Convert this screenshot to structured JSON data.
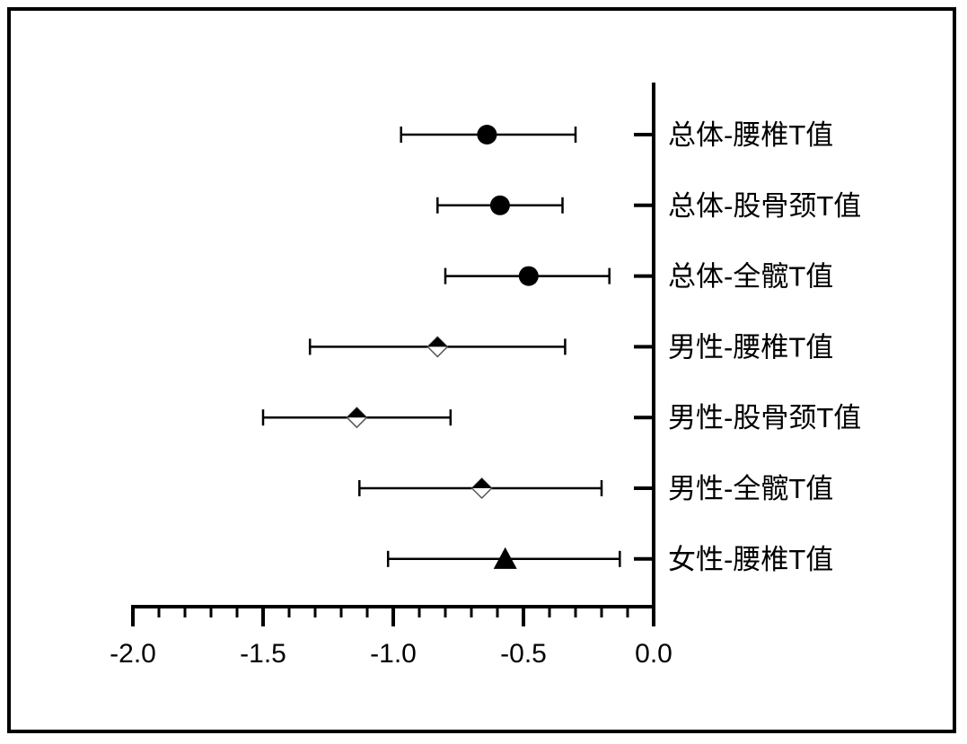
{
  "chart_data": {
    "type": "forest",
    "title": "",
    "xlabel": "",
    "ylabel": "",
    "xlim": [
      -2.0,
      0.0
    ],
    "x_ticks": [
      "-2.0",
      "-1.5",
      "-1.0",
      "-0.5",
      "0.0"
    ],
    "minor_tick_step": 0.1,
    "grid": false,
    "legend": "none",
    "colors": {
      "line": "#000000",
      "background": "#ffffff",
      "marker_fill": "#000000",
      "marker_open": "#ffffff"
    },
    "rows": [
      {
        "label": "总体-腰椎T值",
        "mean": -0.64,
        "lower": -0.97,
        "upper": -0.3,
        "marker": "circle"
      },
      {
        "label": "总体-股骨颈T值",
        "mean": -0.59,
        "lower": -0.83,
        "upper": -0.35,
        "marker": "circle"
      },
      {
        "label": "总体-全髋T值",
        "mean": -0.48,
        "lower": -0.8,
        "upper": -0.17,
        "marker": "circle"
      },
      {
        "label": "男性-腰椎T值",
        "mean": -0.83,
        "lower": -1.32,
        "upper": -0.34,
        "marker": "diamond-half"
      },
      {
        "label": "男性-股骨颈T值",
        "mean": -1.14,
        "lower": -1.5,
        "upper": -0.78,
        "marker": "diamond-half"
      },
      {
        "label": "男性-全髋T值",
        "mean": -0.66,
        "lower": -1.13,
        "upper": -0.2,
        "marker": "diamond-half"
      },
      {
        "label": "女性-腰椎T值",
        "mean": -0.57,
        "lower": -1.02,
        "upper": -0.13,
        "marker": "triangle"
      }
    ]
  }
}
